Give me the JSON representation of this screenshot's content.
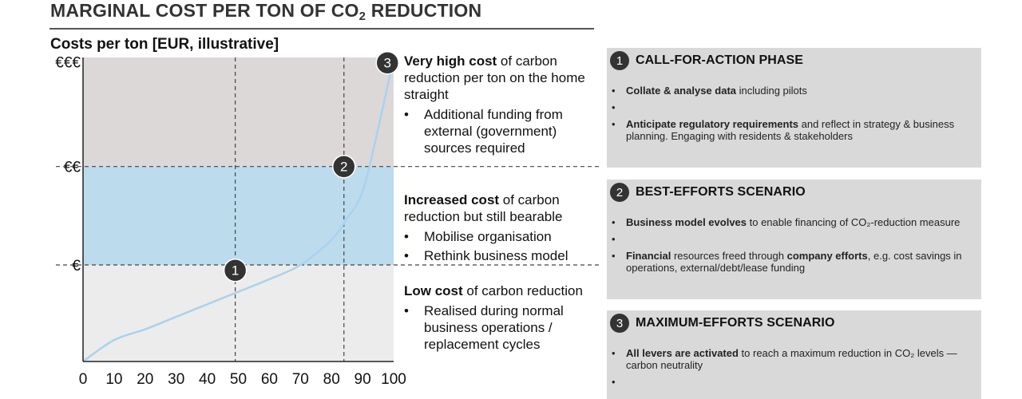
{
  "header": {
    "title_main": "MARGINAL COST PER TON OF CO",
    "title_sub": "2",
    "title_end": " REDUCTION",
    "chart_subtitle": "Costs per ton [EUR, illustrative]"
  },
  "chart_data": {
    "type": "line",
    "x": [
      0,
      10,
      20,
      30,
      40,
      50,
      60,
      70,
      80,
      85,
      90,
      95,
      100
    ],
    "values": [
      0,
      12,
      18,
      25,
      32,
      39,
      46,
      54,
      68,
      80,
      95,
      130,
      170
    ],
    "xlim": [
      0,
      100
    ],
    "ylim": [
      0,
      170
    ],
    "x_ticks": [
      "0",
      "10",
      "20",
      "30",
      "40",
      "50",
      "60",
      "70",
      "80",
      "90",
      "100"
    ],
    "y_tick_labels": [
      "€",
      "€€",
      "€€€"
    ],
    "y_band_boundaries": [
      54,
      109,
      170
    ],
    "band_colors": [
      "#ececec",
      "#bcdcee",
      "#dcd8d8"
    ],
    "line_color": "#a9d2ee",
    "vertical_guides_x": [
      49,
      84
    ],
    "markers": [
      {
        "label": "1",
        "x": 49,
        "y": 51
      },
      {
        "label": "2",
        "x": 84,
        "y": 109
      },
      {
        "label": "3",
        "x": 98,
        "y": 167
      }
    ],
    "grid": false
  },
  "descriptions": [
    {
      "bold": "Very high cost",
      "text": " of carbon reduction per ton on the home straight",
      "bullets": [
        "Additional funding from external (government) sources required"
      ]
    },
    {
      "bold": "Increased cost",
      "text": " of carbon reduction but still bearable",
      "bullets": [
        "Mobilise organisation",
        "Rethink business model"
      ]
    },
    {
      "bold": "Low cost",
      "text": " of carbon reduction",
      "bullets": [
        "Realised during normal business operations / replacement cycles"
      ]
    }
  ],
  "panels": [
    {
      "number": "1",
      "title": "CALL-FOR-ACTION PHASE",
      "bullets": [
        {
          "bold": "Collate & analyse data",
          "text": " including pilots"
        },
        {
          "bold": "",
          "text": ""
        },
        {
          "bold": "Anticipate regulatory requirements",
          "text": " and reflect in strategy & business planning. Engaging with residents & stakeholders"
        }
      ]
    },
    {
      "number": "2",
      "title": "BEST-EFFORTS SCENARIO",
      "bullets": [
        {
          "bold": "Business model evolves",
          "text": " to enable financing of CO₂-reduction measure"
        },
        {
          "bold": "",
          "text": ""
        },
        {
          "bold": "Financial",
          "text": " resources freed through ",
          "bold2": "company efforts",
          "text2": ", e.g. cost savings in operations, external/debt/lease funding"
        }
      ]
    },
    {
      "number": "3",
      "title": "MAXIMUM-EFFORTS SCENARIO",
      "bullets": [
        {
          "bold": "All levers are activated",
          "text": " to reach a maximum reduction in CO₂ levels — carbon neutrality"
        },
        {
          "bold": "",
          "text": ""
        }
      ]
    }
  ]
}
